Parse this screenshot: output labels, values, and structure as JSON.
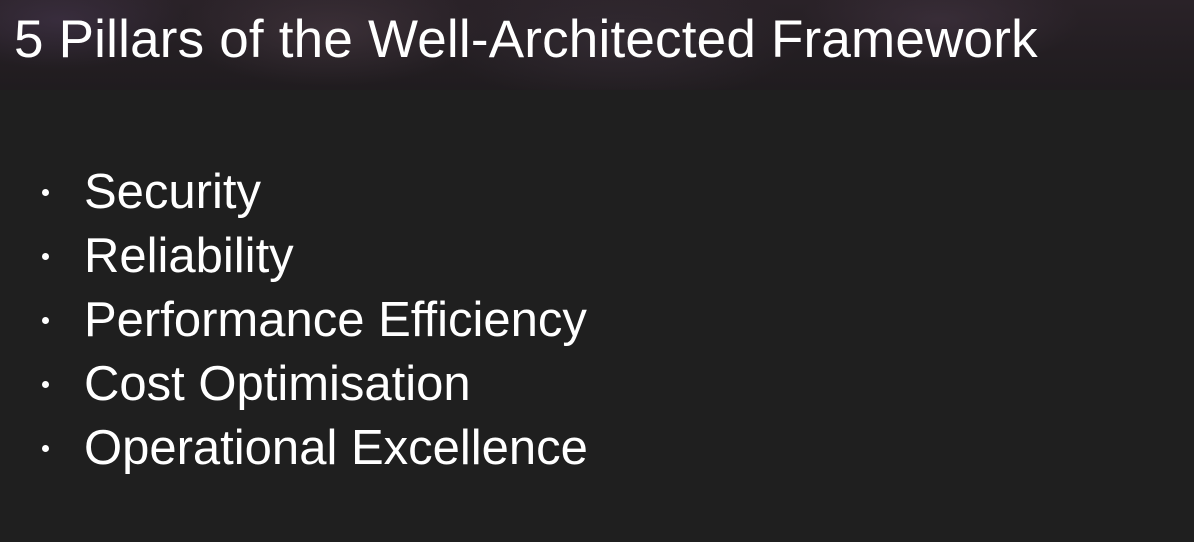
{
  "slide": {
    "title": "5 Pillars of the Well-Architected Framework",
    "bullets": [
      "Security",
      "Reliability",
      "Performance Efficiency",
      "Cost Optimisation",
      "Operational Excellence"
    ]
  },
  "colors": {
    "background": "#1f1f1f",
    "text": "#ffffff"
  }
}
